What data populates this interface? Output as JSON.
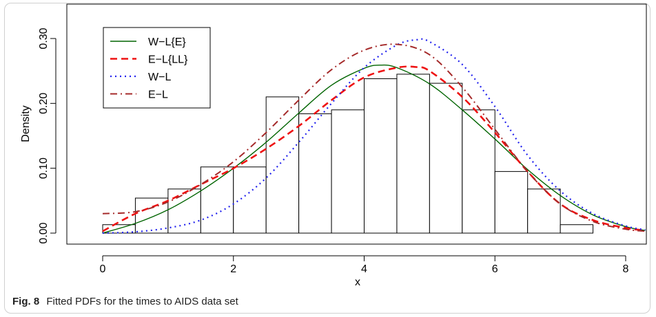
{
  "caption": {
    "label": "Fig. 8",
    "text": "Fitted PDFs for the times to AIDS data set"
  },
  "chart_data": {
    "type": "histogram",
    "xlabel": "x",
    "ylabel": "Density",
    "xlim": [
      -0.1,
      8.3
    ],
    "ylim": [
      0,
      0.31
    ],
    "xticks": [
      0,
      2,
      4,
      6,
      8
    ],
    "xtick_labels": [
      "0",
      "2",
      "4",
      "6",
      "8"
    ],
    "yticks": [
      0.0,
      0.1,
      0.2,
      0.3
    ],
    "ytick_labels": [
      "0.00",
      "0.10",
      "0.20",
      "0.30"
    ],
    "grid": false,
    "legend_position": "top-left",
    "histogram": {
      "bin_edges": [
        0,
        0.5,
        1.0,
        1.5,
        2.0,
        2.5,
        3.0,
        3.5,
        4.0,
        4.5,
        5.0,
        5.5,
        6.0,
        6.5,
        7.0,
        7.5
      ],
      "density": [
        0.013,
        0.054,
        0.068,
        0.102,
        0.102,
        0.21,
        0.184,
        0.19,
        0.238,
        0.245,
        0.231,
        0.19,
        0.095,
        0.068,
        0.013
      ]
    },
    "series": [
      {
        "name": "W−L{E}",
        "color": "#006400",
        "style": "solid",
        "width": 1.4,
        "x": [
          0,
          0.5,
          1.0,
          1.5,
          2.0,
          2.5,
          3.0,
          3.5,
          4.0,
          4.25,
          4.5,
          5.0,
          5.5,
          6.0,
          6.5,
          7.0,
          7.5,
          8.0,
          8.3
        ],
        "y": [
          0.0,
          0.015,
          0.036,
          0.065,
          0.1,
          0.14,
          0.185,
          0.228,
          0.254,
          0.259,
          0.255,
          0.23,
          0.19,
          0.145,
          0.098,
          0.058,
          0.028,
          0.01,
          0.004
        ]
      },
      {
        "name": "E−L{LL}",
        "color": "#ee1111",
        "style": "dashed",
        "width": 2.6,
        "x": [
          0,
          0.5,
          1.0,
          1.5,
          2.0,
          2.5,
          3.0,
          3.5,
          4.0,
          4.5,
          4.8,
          5.0,
          5.5,
          6.0,
          6.5,
          7.0,
          7.5,
          8.0,
          8.3
        ],
        "y": [
          0.003,
          0.03,
          0.05,
          0.075,
          0.1,
          0.13,
          0.165,
          0.205,
          0.24,
          0.255,
          0.256,
          0.25,
          0.21,
          0.155,
          0.095,
          0.045,
          0.02,
          0.008,
          0.004
        ]
      },
      {
        "name": "W−L",
        "color": "#2222ee",
        "style": "dotted",
        "width": 2.2,
        "x": [
          0,
          0.5,
          1.0,
          1.5,
          2.0,
          2.5,
          3.0,
          3.5,
          4.0,
          4.5,
          4.8,
          5.0,
          5.5,
          6.0,
          6.5,
          7.0,
          7.5,
          8.0,
          8.3
        ],
        "y": [
          0.0,
          0.002,
          0.008,
          0.02,
          0.045,
          0.085,
          0.14,
          0.2,
          0.255,
          0.29,
          0.298,
          0.295,
          0.26,
          0.195,
          0.12,
          0.065,
          0.03,
          0.011,
          0.005
        ]
      },
      {
        "name": "E−L",
        "color": "#a52a2a",
        "style": "dashdot",
        "width": 2.0,
        "x": [
          0,
          0.5,
          1.0,
          1.5,
          2.0,
          2.5,
          3.0,
          3.5,
          4.0,
          4.5,
          5.0,
          5.5,
          6.0,
          6.5,
          7.0,
          7.5,
          8.0,
          8.3
        ],
        "y": [
          0.03,
          0.033,
          0.048,
          0.075,
          0.11,
          0.155,
          0.205,
          0.252,
          0.282,
          0.291,
          0.275,
          0.225,
          0.16,
          0.095,
          0.045,
          0.018,
          0.006,
          0.003
        ]
      }
    ]
  }
}
